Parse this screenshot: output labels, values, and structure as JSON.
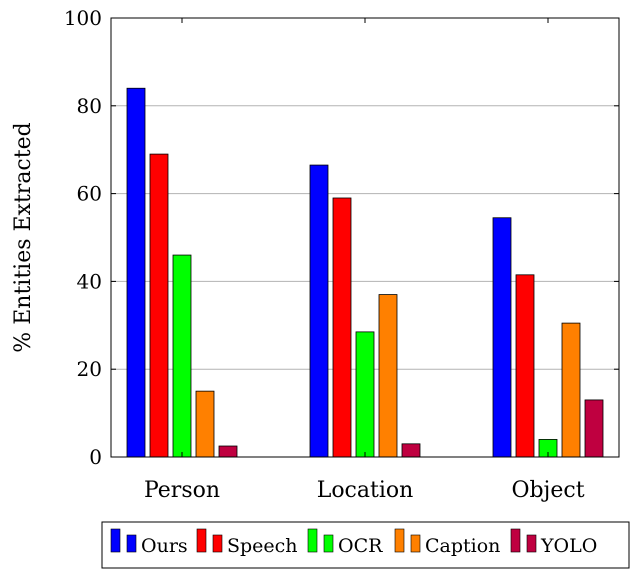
{
  "chart_data": {
    "type": "bar",
    "title": "",
    "xlabel": "",
    "ylabel": "% Entities Extracted",
    "ylim": [
      0,
      100
    ],
    "yticks": [
      0,
      20,
      40,
      60,
      80,
      100
    ],
    "grid": "horizontal",
    "legend_position": "bottom",
    "categories": [
      "Person",
      "Location",
      "Object"
    ],
    "series": [
      {
        "name": "Ours",
        "color": "#0000ff",
        "values": [
          84,
          66.5,
          54.5
        ]
      },
      {
        "name": "Speech",
        "color": "#ff0000",
        "values": [
          69,
          59,
          41.5
        ]
      },
      {
        "name": "OCR",
        "color": "#00ff00",
        "values": [
          46,
          28.5,
          4
        ]
      },
      {
        "name": "Caption",
        "color": "#ff8000",
        "values": [
          15,
          37,
          30.5
        ]
      },
      {
        "name": "YOLO",
        "color": "#bf0040",
        "values": [
          2.5,
          3,
          13
        ]
      }
    ]
  }
}
